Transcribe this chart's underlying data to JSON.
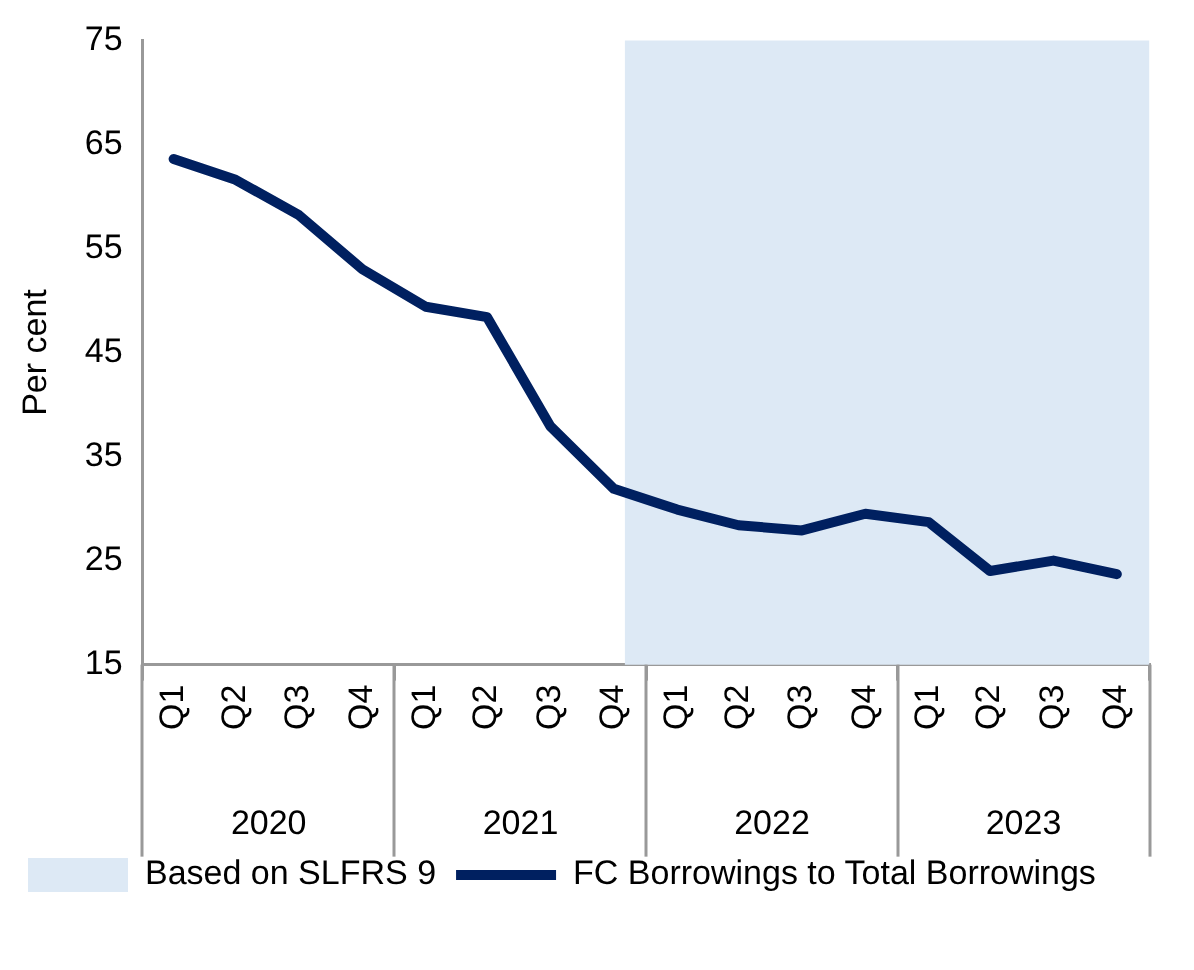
{
  "chart_data": {
    "type": "line",
    "ylabel": "Per cent",
    "x": [
      "2020-02-15",
      "2020-05-15",
      "2020-08-15",
      "2020-11-15",
      "2021-02-15",
      "2021-05-15",
      "2021-08-15",
      "2021-11-15",
      "2022-02-15",
      "2022-05-15",
      "2022-08-15",
      "2022-11-15",
      "2023-02-15",
      "2023-05-15",
      "2023-08-15",
      "2023-11-15"
    ],
    "series": [
      {
        "name": "FC Borrowings to Total Borrowings",
        "color": "#002060",
        "values": [
          63.6,
          61.6,
          58.2,
          53.0,
          49.4,
          48.4,
          37.9,
          31.9,
          29.9,
          28.4,
          27.9,
          29.5,
          28.7,
          24.0,
          25.0,
          23.7
        ]
      }
    ],
    "xlim": [
      "2020-01-01",
      "2024-01-01"
    ],
    "xticks": [
      {
        "value": "2020-01-01",
        "label": null
      },
      {
        "value": "2020-02-15",
        "label": "Q1"
      },
      {
        "value": "2020-05-15",
        "label": "Q2"
      },
      {
        "value": "2020-08-15",
        "label": "Q3"
      },
      {
        "value": "2020-11-15",
        "label": "Q4"
      },
      {
        "value": "2021-01-01",
        "label": null
      },
      {
        "value": "2021-02-15",
        "label": "Q1"
      },
      {
        "value": "2021-05-15",
        "label": "Q2"
      },
      {
        "value": "2021-08-15",
        "label": "Q3"
      },
      {
        "value": "2021-11-15",
        "label": "Q4"
      },
      {
        "value": "2022-01-01",
        "label": null
      },
      {
        "value": "2022-02-15",
        "label": "Q1"
      },
      {
        "value": "2022-05-15",
        "label": "Q2"
      },
      {
        "value": "2022-08-15",
        "label": "Q3"
      },
      {
        "value": "2022-11-15",
        "label": "Q4"
      },
      {
        "value": "2023-01-01",
        "label": null
      },
      {
        "value": "2023-02-15",
        "label": "Q1"
      },
      {
        "value": "2023-05-15",
        "label": "Q2"
      },
      {
        "value": "2023-08-15",
        "label": "Q3"
      },
      {
        "value": "2023-11-15",
        "label": "Q4"
      },
      {
        "value": "2024-01-01",
        "label": null
      }
    ],
    "ylim": [
      15,
      75
    ],
    "yticks": [
      15,
      25,
      35,
      45,
      55,
      65,
      75
    ],
    "grid": false,
    "legend": "bottom",
    "marker": "none",
    "line_style": "solid",
    "bands": [
      {
        "axis": "x",
        "from": "2021-12",
        "to": "2024-01",
        "label": "Based on SLFRS 9",
        "color": "#dde9f5"
      }
    ],
    "annotations": [
      "2020",
      "2021",
      "2022",
      "2023"
    ]
  }
}
